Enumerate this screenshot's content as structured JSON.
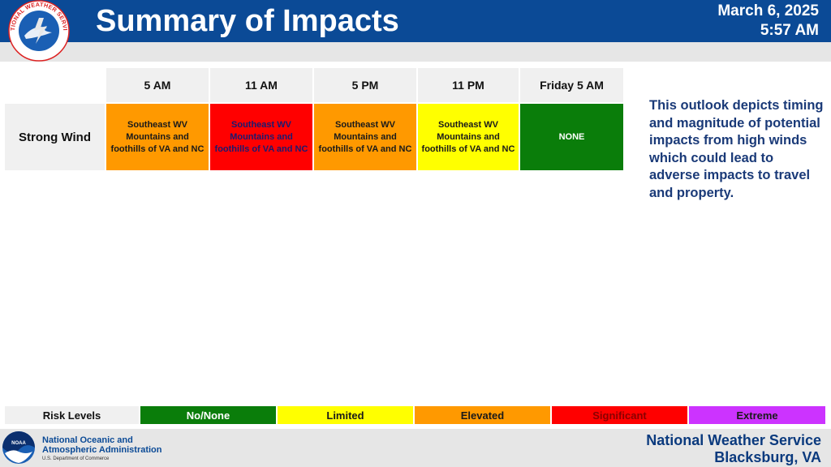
{
  "header": {
    "title": "Summary of Impacts",
    "date": "March 6, 2025",
    "time": "5:57 AM",
    "logo_text": "NATIONAL WEATHER SERVICE"
  },
  "table": {
    "columns": [
      "5 AM",
      "11 AM",
      "5 PM",
      "11 PM",
      "Friday 5 AM"
    ],
    "row_label": "Strong Wind",
    "cells": [
      {
        "text": "Southeast WV Mountains and foothills of VA and NC",
        "level": "Elevated",
        "color": "#ff9900",
        "text_color": "#1a1a1a"
      },
      {
        "text": "Southeast WV Mountains and foothills of VA and NC",
        "level": "Significant",
        "color": "#ff0000",
        "text_color": "#1a1a70"
      },
      {
        "text": "Southeast WV Mountains and foothills of VA and NC",
        "level": "Elevated",
        "color": "#ff9900",
        "text_color": "#1a1a1a"
      },
      {
        "text": "Southeast WV Mountains and foothills of VA and NC",
        "level": "Limited",
        "color": "#ffff00",
        "text_color": "#1a1a1a"
      },
      {
        "text": "NONE",
        "level": "No/None",
        "color": "#0a7d0a",
        "text_color": "#ffffff"
      }
    ]
  },
  "description": "This outlook depicts timing and magnitude of potential impacts from high winds which could lead to adverse impacts to travel and property.",
  "risk_levels": {
    "label": "Risk Levels",
    "items": [
      {
        "name": "No/None",
        "color": "#0a7d0a",
        "text_color": "#ffffff"
      },
      {
        "name": "Limited",
        "color": "#ffff00",
        "text_color": "#1a1a1a"
      },
      {
        "name": "Elevated",
        "color": "#ff9900",
        "text_color": "#1a1a1a"
      },
      {
        "name": "Significant",
        "color": "#ff0000",
        "text_color": "#8b0000"
      },
      {
        "name": "Extreme",
        "color": "#cc33ff",
        "text_color": "#1a1a1a"
      }
    ]
  },
  "footer": {
    "noaa_line1": "National Oceanic and",
    "noaa_line2": "Atmospheric Administration",
    "noaa_sub": "U.S. Department of Commerce",
    "noaa_logo_text": "NOAA",
    "nws_name": "National Weather Service",
    "nws_city": "Blacksburg, VA"
  }
}
